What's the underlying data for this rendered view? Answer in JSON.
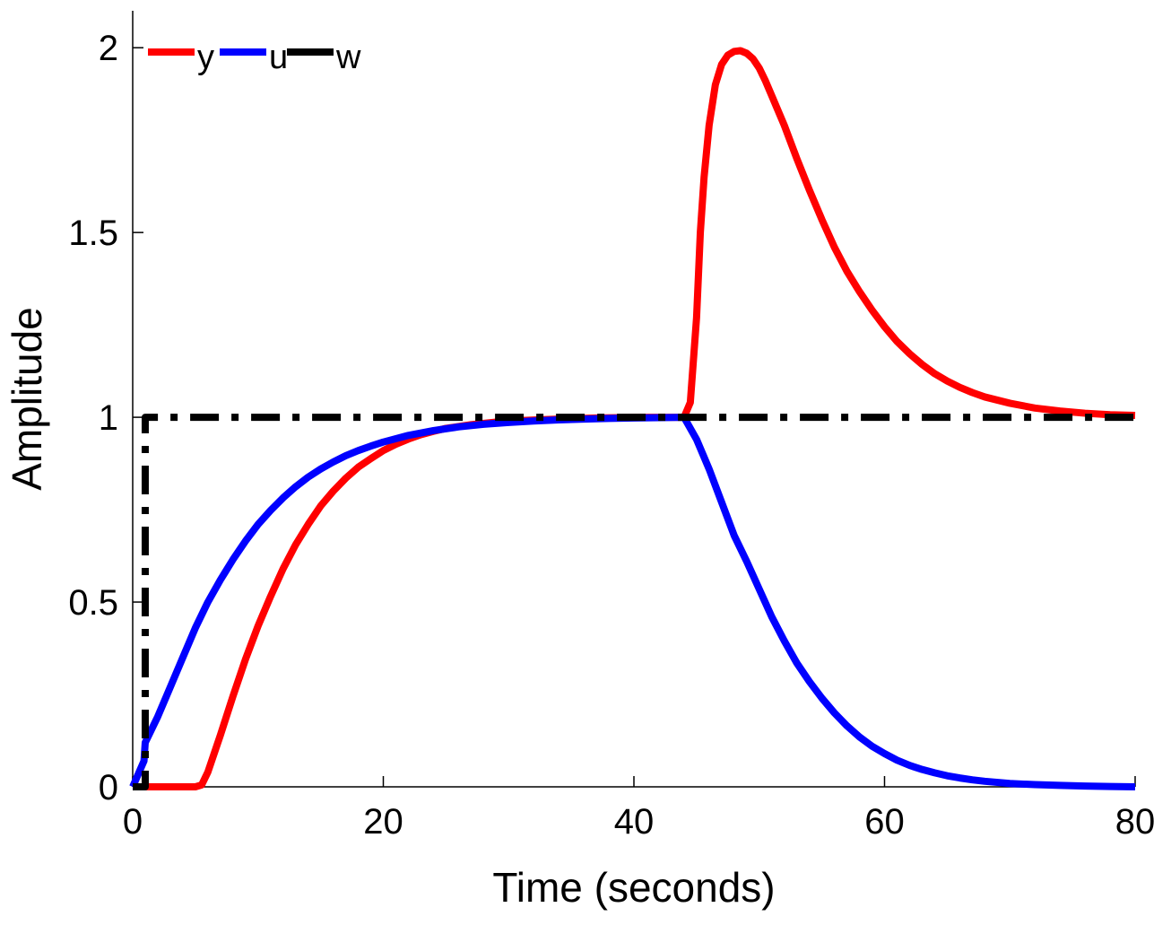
{
  "chart_data": {
    "type": "line",
    "title": "",
    "xlabel": "Time (seconds)",
    "ylabel": "Amplitude",
    "xlim": [
      0,
      80
    ],
    "ylim": [
      0,
      2.1
    ],
    "grid": false,
    "legend_location": "top-left",
    "x_ticks": [
      0,
      20,
      40,
      60,
      80
    ],
    "x_tick_labels": [
      "0",
      "20",
      "40",
      "60",
      "80"
    ],
    "y_ticks": [
      0,
      0.5,
      1,
      1.5,
      2
    ],
    "y_tick_labels": [
      "0",
      "0.5",
      "1",
      "1.5",
      "2"
    ],
    "series": [
      {
        "name": "y",
        "color": "#ff0000",
        "style": "solid",
        "x": [
          0,
          1,
          2,
          3,
          4,
          5,
          5.5,
          6,
          7,
          8,
          9,
          10,
          11,
          12,
          13,
          14,
          15,
          16,
          17,
          18,
          19,
          20,
          21,
          22,
          23,
          24,
          25,
          27,
          29,
          31,
          33,
          35,
          37,
          39,
          41,
          43,
          44,
          44.5,
          45,
          45.3,
          45.6,
          46,
          46.5,
          47,
          47.5,
          48,
          48.5,
          49,
          49.5,
          50,
          50.5,
          51,
          52,
          53,
          54,
          55,
          56,
          57,
          58,
          59,
          60,
          61,
          62,
          63,
          64,
          65,
          66,
          67,
          68,
          70,
          72,
          74,
          76,
          78,
          80
        ],
        "y": [
          0,
          0,
          0,
          0,
          0,
          0,
          0.005,
          0.04,
          0.14,
          0.245,
          0.345,
          0.435,
          0.515,
          0.59,
          0.655,
          0.71,
          0.76,
          0.8,
          0.835,
          0.865,
          0.888,
          0.91,
          0.927,
          0.941,
          0.953,
          0.962,
          0.97,
          0.98,
          0.987,
          0.991,
          0.994,
          0.996,
          0.998,
          0.999,
          1.0,
          1.0,
          1.0,
          1.04,
          1.27,
          1.5,
          1.65,
          1.79,
          1.9,
          1.955,
          1.98,
          1.99,
          1.992,
          1.985,
          1.97,
          1.945,
          1.91,
          1.87,
          1.79,
          1.7,
          1.615,
          1.535,
          1.46,
          1.395,
          1.34,
          1.29,
          1.245,
          1.205,
          1.172,
          1.143,
          1.118,
          1.098,
          1.081,
          1.067,
          1.055,
          1.038,
          1.025,
          1.017,
          1.011,
          1.007,
          1.005
        ]
      },
      {
        "name": "u",
        "color": "#0000ff",
        "style": "solid",
        "x": [
          0,
          0.9,
          1,
          2,
          3,
          4,
          5,
          6,
          7,
          8,
          9,
          10,
          11,
          12,
          13,
          14,
          15,
          16,
          17,
          18,
          19,
          20,
          22,
          24,
          26,
          28,
          30,
          32,
          34,
          36,
          38,
          40,
          42,
          44,
          45,
          46,
          47,
          48,
          49,
          50,
          51,
          52,
          53,
          54,
          55,
          56,
          57,
          58,
          59,
          60,
          61,
          62,
          63,
          64,
          65,
          66,
          67,
          68,
          70,
          72,
          74,
          76,
          78,
          80
        ],
        "y": [
          0,
          0.07,
          0.12,
          0.19,
          0.27,
          0.35,
          0.43,
          0.5,
          0.56,
          0.615,
          0.665,
          0.71,
          0.748,
          0.782,
          0.812,
          0.838,
          0.86,
          0.879,
          0.896,
          0.91,
          0.922,
          0.933,
          0.951,
          0.964,
          0.974,
          0.981,
          0.986,
          0.99,
          0.993,
          0.995,
          0.997,
          0.998,
          0.999,
          1.0,
          0.94,
          0.86,
          0.77,
          0.68,
          0.61,
          0.535,
          0.46,
          0.395,
          0.335,
          0.285,
          0.24,
          0.2,
          0.165,
          0.135,
          0.11,
          0.09,
          0.072,
          0.058,
          0.047,
          0.038,
          0.03,
          0.024,
          0.019,
          0.015,
          0.009,
          0.006,
          0.004,
          0.002,
          0.001,
          0.0
        ]
      },
      {
        "name": "w",
        "color": "#000000",
        "style": "dashdot",
        "x": [
          0,
          1,
          1,
          80
        ],
        "y": [
          0,
          0,
          1,
          1
        ]
      }
    ]
  }
}
